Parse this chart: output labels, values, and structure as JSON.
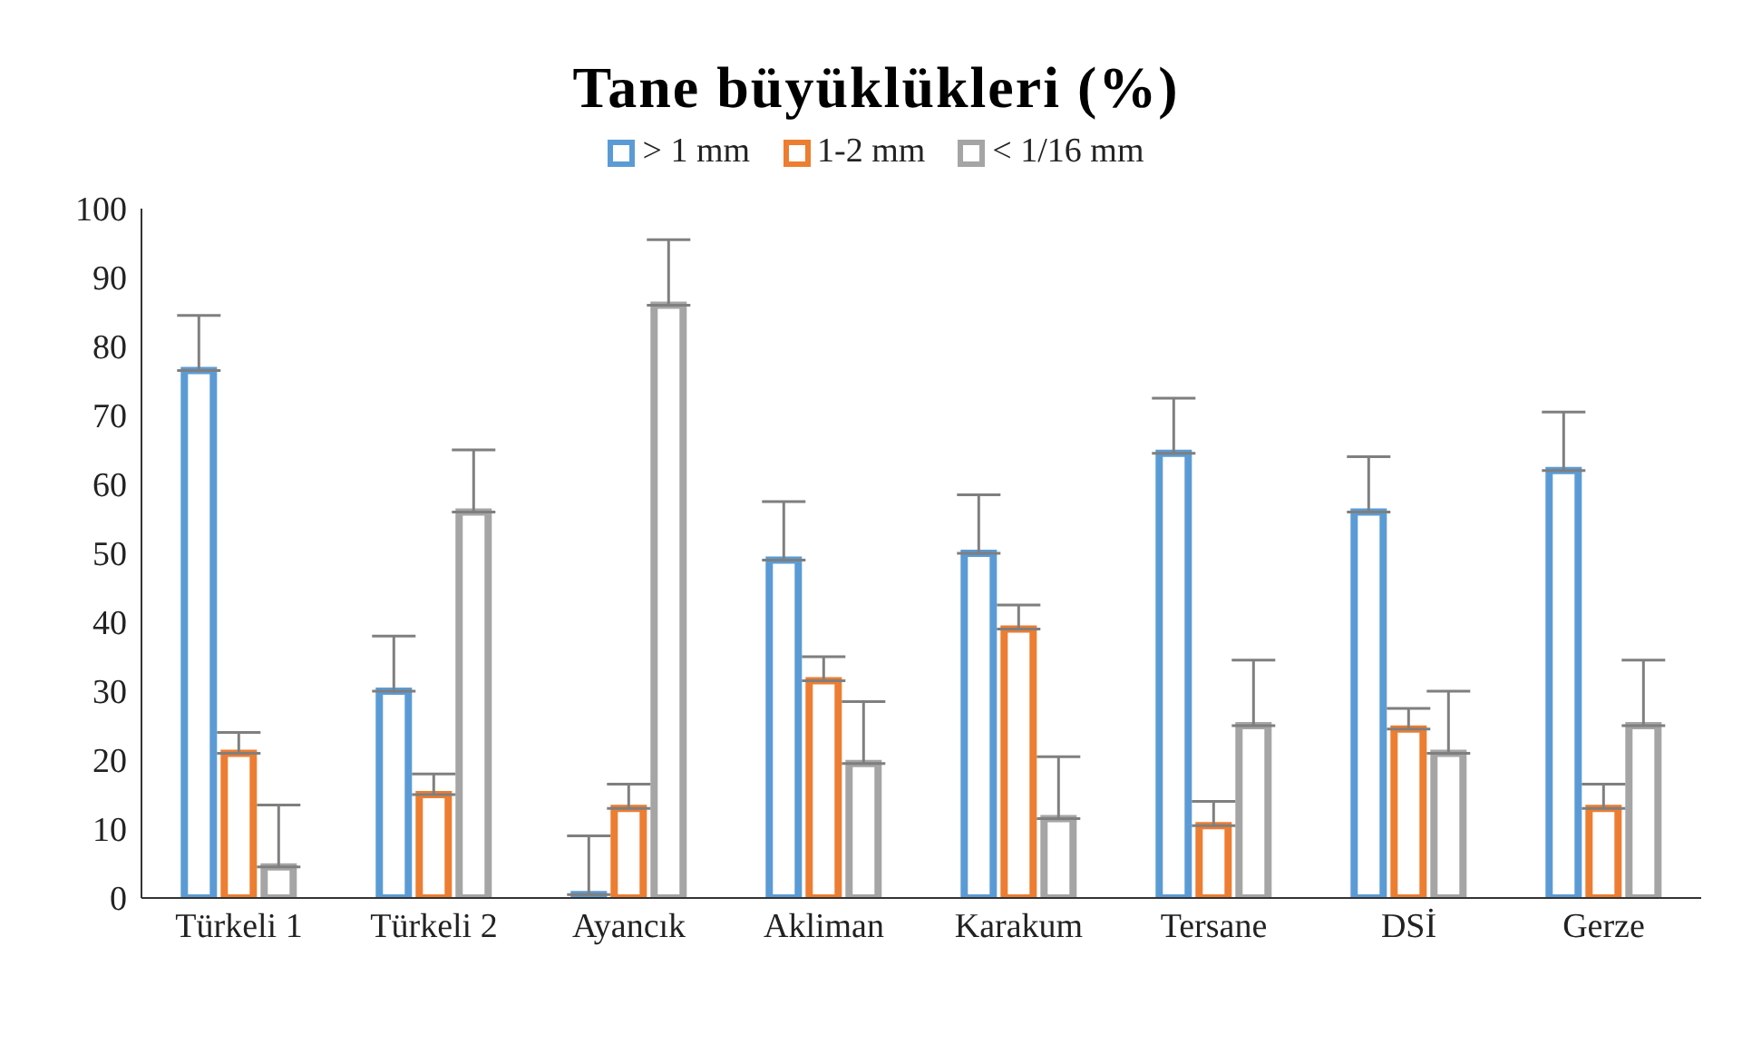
{
  "chart_data": {
    "type": "bar",
    "title": "Tane büyüklükleri (%)",
    "categories": [
      "Türkeli 1",
      "Türkeli 2",
      "Ayancık",
      "Akliman",
      "Karakum",
      "Tersane",
      "DSİ",
      "Gerze"
    ],
    "series": [
      {
        "name": "> 1 mm",
        "color": "#5b9bd5",
        "values": [
          76.5,
          30,
          0.5,
          49,
          50,
          64.5,
          56,
          62
        ],
        "errors": [
          [
            76.5,
            84.5
          ],
          [
            30,
            38
          ],
          [
            0.5,
            9
          ],
          [
            49,
            57.5
          ],
          [
            50,
            58.5
          ],
          [
            64.5,
            72.5
          ],
          [
            56,
            64
          ],
          [
            62,
            70.5
          ]
        ]
      },
      {
        "name": "1-2 mm",
        "color": "#ed7d31",
        "values": [
          21,
          15,
          13,
          31.5,
          39,
          10.5,
          24.5,
          13
        ],
        "errors": [
          [
            21,
            24
          ],
          [
            15,
            18
          ],
          [
            13,
            16.5
          ],
          [
            31.5,
            35
          ],
          [
            39,
            42.5
          ],
          [
            10.5,
            14
          ],
          [
            24.5,
            27.5
          ],
          [
            13,
            16.5
          ]
        ]
      },
      {
        "name": "< 1/16 mm",
        "color": "#a5a5a5",
        "values": [
          4.5,
          56,
          86,
          19.5,
          11.5,
          25,
          21,
          25
        ],
        "errors": [
          [
            4.5,
            13.5
          ],
          [
            56,
            65
          ],
          [
            86,
            95.5
          ],
          [
            19.5,
            28.5
          ],
          [
            11.5,
            20.5
          ],
          [
            25,
            34.5
          ],
          [
            21,
            30
          ],
          [
            25,
            34.5
          ]
        ]
      }
    ],
    "ylim": [
      0,
      100
    ],
    "yticks": [
      0,
      10,
      20,
      30,
      40,
      50,
      60,
      70,
      80,
      90,
      100
    ],
    "legend": "top"
  }
}
